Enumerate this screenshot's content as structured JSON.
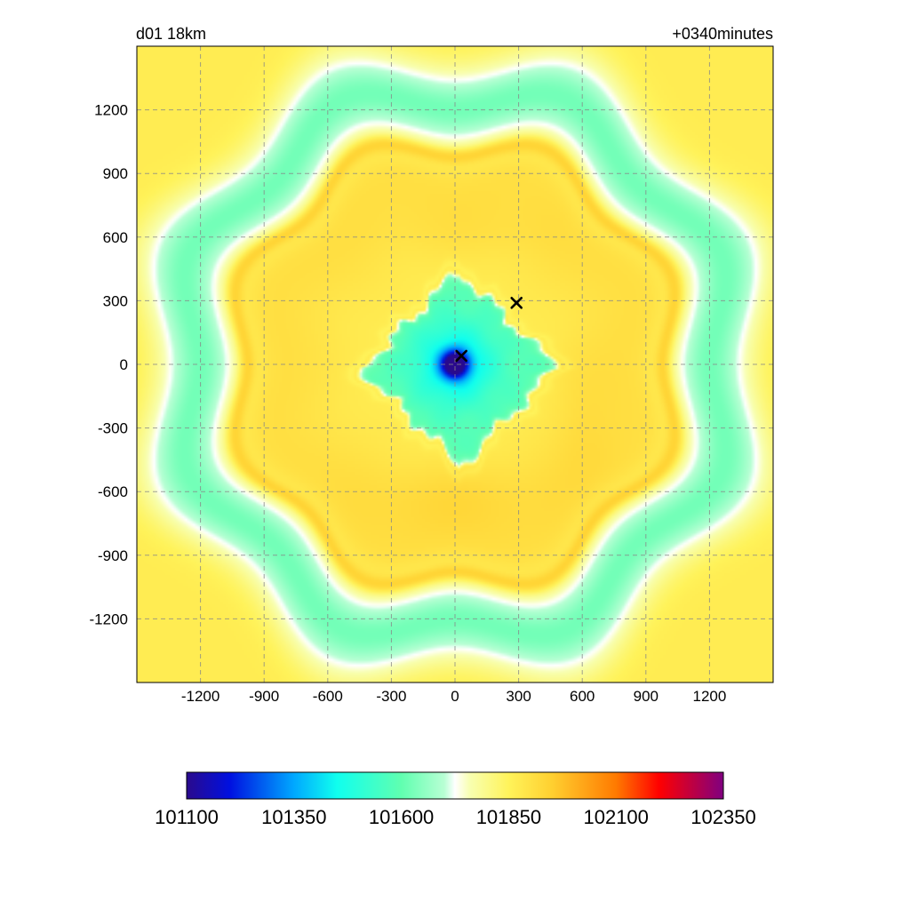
{
  "chart_data": {
    "type": "heatmap",
    "title_left": "d01 18km",
    "title_right": "+0340minutes",
    "xlabel": "",
    "ylabel": "",
    "xlim": [
      -1500,
      1500
    ],
    "ylim": [
      -1500,
      1500
    ],
    "grid": true,
    "grid_style": "dashed",
    "x_ticks": [
      -1200,
      -900,
      -600,
      -300,
      0,
      300,
      600,
      900,
      1200
    ],
    "y_ticks": [
      1200,
      900,
      600,
      300,
      0,
      -300,
      -600,
      -900,
      -1200
    ],
    "x_tick_labels": [
      "-1200",
      "-900",
      "-600",
      "-300",
      "0",
      "300",
      "600",
      "900",
      "1200"
    ],
    "y_tick_labels": [
      "1200",
      "900",
      "600",
      "300",
      "0",
      "-300",
      "-600",
      "-900",
      "-1200"
    ],
    "markers": [
      {
        "x": 30,
        "y": 40,
        "symbol": "x"
      },
      {
        "x": 290,
        "y": 290,
        "symbol": "x"
      }
    ],
    "colorbar": {
      "orientation": "horizontal",
      "min": 101100,
      "max": 102350,
      "tick_values": [
        101100,
        101350,
        101600,
        101850,
        102100,
        102350
      ],
      "tick_labels": [
        "101100",
        "101350",
        "101600",
        "101850",
        "102100",
        "102350"
      ],
      "color_stops": [
        {
          "value": 101100,
          "color": "#2a0a8c"
        },
        {
          "value": 101200,
          "color": "#0010e0"
        },
        {
          "value": 101350,
          "color": "#00a8ff"
        },
        {
          "value": 101450,
          "color": "#10ffee"
        },
        {
          "value": 101600,
          "color": "#60ffb0"
        },
        {
          "value": 101700,
          "color": "#b8ffd4"
        },
        {
          "value": 101725,
          "color": "#ffffff"
        },
        {
          "value": 101760,
          "color": "#f8ffb0"
        },
        {
          "value": 101850,
          "color": "#fff35a"
        },
        {
          "value": 101950,
          "color": "#ffd030"
        },
        {
          "value": 102100,
          "color": "#ff7a00"
        },
        {
          "value": 102200,
          "color": "#ff0000"
        },
        {
          "value": 102350,
          "color": "#800080"
        }
      ]
    },
    "field_features": {
      "low_center": {
        "x": -10,
        "y": 0,
        "value": 101100
      },
      "inner_diamond_half_width": 480,
      "inner_value": 101600,
      "ring_value": 101900,
      "outer_band_value": 101620,
      "corner_value": 101870
    }
  }
}
